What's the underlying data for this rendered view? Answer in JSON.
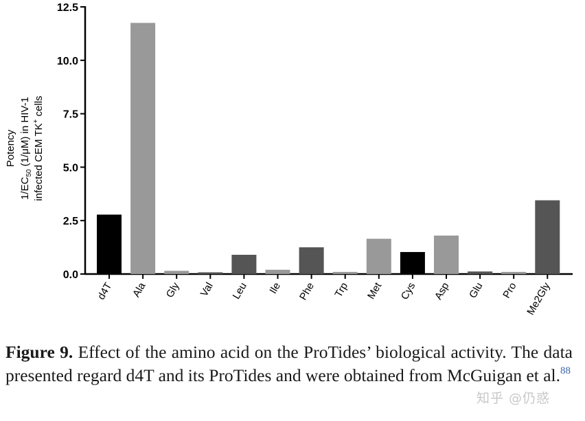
{
  "chart_data": {
    "type": "bar",
    "ylabel_lines": [
      "Potency",
      "1/EC",
      "50",
      " (1/μM) in HIV-1",
      "infected CEM TK",
      "+",
      " cells"
    ],
    "ylim": [
      0,
      12.5
    ],
    "yticks": [
      "0.0",
      "2.5",
      "5.0",
      "7.5",
      "10.0",
      "12.5"
    ],
    "ytick_values": [
      0,
      2.5,
      5.0,
      7.5,
      10.0,
      12.5
    ],
    "categories": [
      "d4T",
      "Ala",
      "Gly",
      "Val",
      "Leu",
      "Ile",
      "Phe",
      "Trp",
      "Met",
      "Cys",
      "Asp",
      "Glu",
      "Pro",
      "Me2Gly"
    ],
    "values": [
      2.78,
      11.75,
      0.15,
      0.08,
      0.9,
      0.2,
      1.25,
      0.1,
      1.65,
      1.03,
      1.8,
      0.12,
      0.1,
      3.45
    ],
    "colors": [
      "#000000",
      "#999999",
      "#999999",
      "#555555",
      "#555555",
      "#999999",
      "#555555",
      "#999999",
      "#999999",
      "#000000",
      "#999999",
      "#555555",
      "#999999",
      "#555555"
    ],
    "grid": false,
    "legend": "none"
  },
  "caption": {
    "label": "Figure 9.",
    "text": " Effect of the amino acid on the ProTides’ biological activity. The data presented regard d4T and its ProTides and were obtained from McGuigan et al.",
    "ref": "88"
  },
  "watermark": "知乎 @仍惑"
}
